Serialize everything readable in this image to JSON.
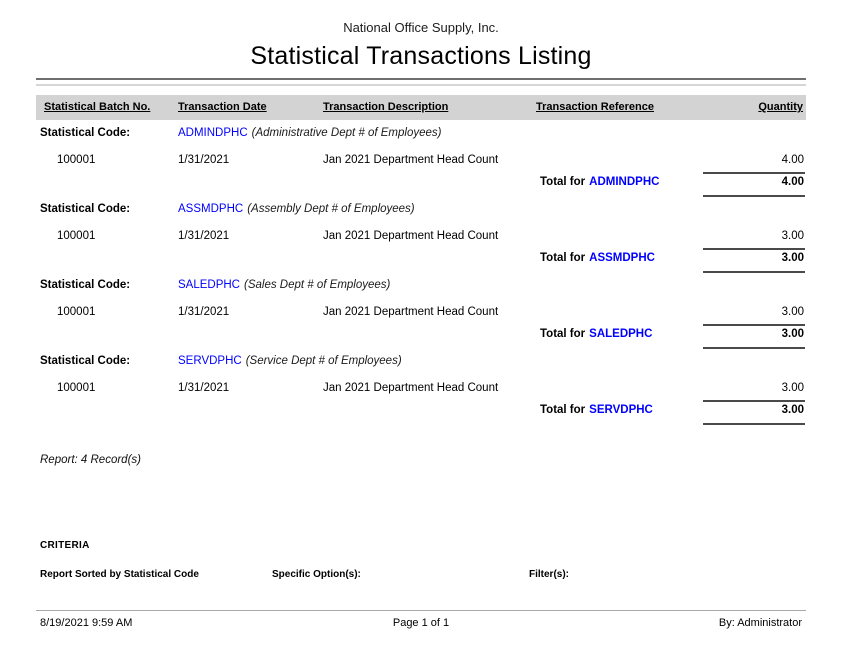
{
  "header": {
    "company": "National Office Supply, Inc.",
    "title": "Statistical Transactions Listing"
  },
  "table": {
    "columns": {
      "batch": "Statistical Batch No.",
      "date": "Transaction Date",
      "description": "Transaction Description",
      "reference": "Transaction Reference",
      "quantity": "Quantity"
    }
  },
  "labels": {
    "statistical_code": "Statistical Code:",
    "total_for": "Total for"
  },
  "sections": [
    {
      "code": "ADMINDPHC",
      "description": "(Administrative Dept # of Employees)",
      "batch": "100001",
      "date": "1/31/2021",
      "transaction_description": "Jan 2021 Department Head Count",
      "quantity": "4.00",
      "total": "4.00"
    },
    {
      "code": "ASSMDPHC",
      "description": "(Assembly Dept # of Employees)",
      "batch": "100001",
      "date": "1/31/2021",
      "transaction_description": "Jan 2021 Department Head Count",
      "quantity": "3.00",
      "total": "3.00"
    },
    {
      "code": "SALEDPHC",
      "description": "(Sales Dept # of Employees)",
      "batch": "100001",
      "date": "1/31/2021",
      "transaction_description": "Jan 2021 Department Head Count",
      "quantity": "3.00",
      "total": "3.00"
    },
    {
      "code": "SERVDPHC",
      "description": "(Service Dept # of Employees)",
      "batch": "100001",
      "date": "1/31/2021",
      "transaction_description": "Jan 2021 Department Head Count",
      "quantity": "3.00",
      "total": "3.00"
    }
  ],
  "summary": {
    "record_count": "Report: 4 Record(s)"
  },
  "criteria": {
    "heading": "CRITERIA",
    "sorted_by": "Report Sorted by Statistical Code",
    "specific_options": "Specific Option(s):",
    "filters": "Filter(s):"
  },
  "footer": {
    "datetime": "8/19/2021 9:59 AM",
    "page": "Page 1 of 1",
    "by": "By: Administrator"
  },
  "colors": {
    "code_blue": "#0000FF",
    "header_band": "#D3D3D3"
  }
}
